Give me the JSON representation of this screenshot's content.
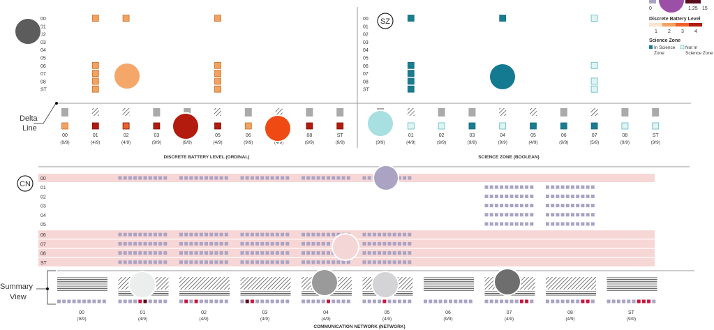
{
  "colors": {
    "battery": [
      "#fbe3cc",
      "#f4a261",
      "#f0612a",
      "#b21b0e"
    ],
    "sz_in": "#1a6e80",
    "sz_in_fill": "#1b7b8f",
    "sz_out_fill": "#dff4f4",
    "sz_out_stroke": "#5bb8c0",
    "cn_sq": "#a9a3c4",
    "cn_red": "#c8163c",
    "cn_dark": "#5a0b1c",
    "highlight": "#f7d6d6",
    "line": "#999999"
  },
  "legend": {
    "scale_labels": [
      "0",
      "1.25",
      "15"
    ],
    "battery_title": "Discrete Battery Level",
    "battery_ticks": [
      "1",
      "2",
      "3",
      "4"
    ],
    "sz_title": "Science Zone",
    "sz_in": "In Science Zone",
    "sz_out": "Not In Science Zone"
  },
  "annotations": {
    "delta_line": "Delta Line",
    "summary_view": "Summary View"
  },
  "badges": {
    "sz": "SZ",
    "cn": "CN"
  },
  "row_labels": [
    "00",
    "01",
    "02",
    "03",
    "04",
    "05",
    "06",
    "07",
    "08",
    "ST"
  ],
  "battery_panel": {
    "title": "DISCRETE BATTERY LEVEL (ORDINAL)",
    "columns": [
      {
        "label": "00",
        "count": "(9/9)",
        "level": 2,
        "hatched": false
      },
      {
        "label": "01",
        "count": "(4/9)",
        "level": 4,
        "hatched": true
      },
      {
        "label": "02",
        "count": "(4/9)",
        "level": 3,
        "hatched": true
      },
      {
        "label": "03",
        "count": "(9/9)",
        "level": 4,
        "hatched": false
      },
      {
        "label": "04",
        "count": "(9/9)",
        "level": 4,
        "hatched": false
      },
      {
        "label": "05",
        "count": "(4/9)",
        "level": 4,
        "hatched": true
      },
      {
        "label": "06",
        "count": "(9/9)",
        "level": 2,
        "hatched": false
      },
      {
        "label": "07",
        "count": "(4/9)",
        "level": 4,
        "hatched": true
      },
      {
        "label": "08",
        "count": "(9/9)",
        "level": 4,
        "hatched": false
      },
      {
        "label": "ST",
        "count": "(9/9)",
        "level": 4,
        "hatched": false
      }
    ],
    "grid_columns": [
      1,
      2,
      5
    ],
    "grid_column_rows": [
      [
        0,
        6,
        7,
        8,
        9
      ],
      [
        0
      ],
      [
        0,
        6,
        7,
        8,
        9
      ]
    ]
  },
  "sz_panel": {
    "title": "SCIENCE ZONE (BOOLEAN)",
    "columns": [
      {
        "label": "00",
        "count": "(9/9)",
        "in": false,
        "hatched": false
      },
      {
        "label": "01",
        "count": "(4/9)",
        "in": false,
        "hatched": true
      },
      {
        "label": "02",
        "count": "(9/9)",
        "in": false,
        "hatched": false
      },
      {
        "label": "03",
        "count": "(9/9)",
        "in": true,
        "hatched": false
      },
      {
        "label": "04",
        "count": "(9/9)",
        "in": false,
        "hatched": true
      },
      {
        "label": "05",
        "count": "(4/9)",
        "in": true,
        "hatched": true
      },
      {
        "label": "06",
        "count": "(9/9)",
        "in": true,
        "hatched": false
      },
      {
        "label": "07",
        "count": "(5/9)",
        "in": true,
        "hatched": true
      },
      {
        "label": "08",
        "count": "(9/9)",
        "in": false,
        "hatched": false
      },
      {
        "label": "ST",
        "count": "(9/9)",
        "in": false,
        "hatched": false
      }
    ],
    "grid_cells": [
      {
        "col": 1,
        "rows": [
          0,
          6,
          7,
          8,
          9
        ],
        "in": true
      },
      {
        "col": 4,
        "rows": [
          0
        ],
        "in": true
      },
      {
        "col": 7,
        "rows": [
          0,
          6,
          8,
          9
        ],
        "in": false
      }
    ]
  },
  "cn_panel": {
    "title": "COMMUNICATION NETWORK (NETWORK)",
    "highlight_rows": [
      0,
      6,
      7,
      8,
      9
    ],
    "row_blocks": [
      [
        1,
        2,
        3,
        4,
        5
      ],
      [
        7,
        8
      ],
      [
        7,
        8
      ],
      [
        7,
        8
      ],
      [
        7,
        8
      ],
      [
        7,
        8
      ],
      [
        1,
        2,
        3,
        4,
        5
      ],
      [
        1,
        2,
        3,
        4,
        5
      ],
      [
        1,
        2,
        3,
        4,
        5
      ],
      [
        1,
        2,
        3,
        4,
        5
      ]
    ],
    "columns": [
      {
        "label": "00",
        "count": "(9/9)",
        "hatched": false,
        "marks": []
      },
      {
        "label": "01",
        "count": "(4/9)",
        "hatched": true,
        "marks": [
          {
            "i": 4,
            "c": "red"
          },
          {
            "i": 5,
            "c": "dark"
          }
        ]
      },
      {
        "label": "02",
        "count": "(4/9)",
        "hatched": true,
        "marks": [
          {
            "i": 1,
            "c": "red"
          },
          {
            "i": 3,
            "c": "red"
          }
        ]
      },
      {
        "label": "03",
        "count": "(4/9)",
        "hatched": true,
        "marks": [
          {
            "i": 1,
            "c": "dark"
          },
          {
            "i": 2,
            "c": "red"
          }
        ]
      },
      {
        "label": "04",
        "count": "(4/9)",
        "hatched": true,
        "marks": [
          {
            "i": 5,
            "c": "red"
          }
        ]
      },
      {
        "label": "05",
        "count": "(4/9)",
        "hatched": true,
        "marks": [
          {
            "i": 4,
            "c": "red"
          }
        ]
      },
      {
        "label": "06",
        "count": "(9/9)",
        "hatched": false,
        "marks": []
      },
      {
        "label": "07",
        "count": "(4/9)",
        "hatched": true,
        "marks": [
          {
            "i": 7,
            "c": "red"
          },
          {
            "i": 8,
            "c": "red"
          }
        ]
      },
      {
        "label": "08",
        "count": "(4/9)",
        "hatched": true,
        "marks": [
          {
            "i": 7,
            "c": "red"
          },
          {
            "i": 8,
            "c": "red"
          }
        ]
      },
      {
        "label": "ST",
        "count": "(9/9)",
        "hatched": false,
        "marks": [
          {
            "i": 6,
            "c": "red"
          },
          {
            "i": 7,
            "c": "red"
          },
          {
            "i": 8,
            "c": "red"
          }
        ]
      }
    ]
  }
}
